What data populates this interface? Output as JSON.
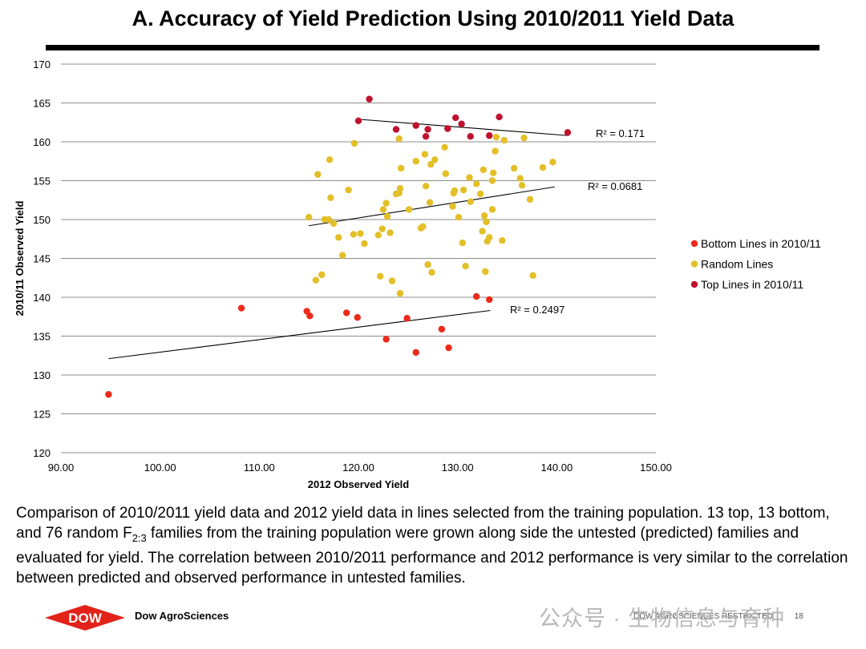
{
  "slide_title": "A.  Accuracy of Yield Prediction Using 2010/2011 Yield Data",
  "caption": {
    "part1": "Comparison of 2010/2011 yield data and 2012 yield data in lines selected from the training population.  13 top, 13 bottom, and 76 random F",
    "subscript": "2:3",
    "part2": " families from the training population were grown along side the untested (predicted) families and evaluated for yield.  The correlation between 2010/2011 performance and 2012 performance is very similar to the correlation between predicted and observed performance in untested families."
  },
  "footer": {
    "company": "Dow AgroSciences",
    "logo_text": "DOW",
    "restricted": "DOW AGROSCIENCES RESTRICTED",
    "page_number": "18",
    "watermark": "公众号 · 生物信息与育种"
  },
  "colors": {
    "bottom": "#ee2a1a",
    "random": "#e3bf28",
    "top": "#c0112e",
    "grid": "#8c8c8c",
    "trend": "#000000",
    "logo": "#e2231a"
  },
  "chart_data": {
    "type": "scatter",
    "title": "",
    "xlabel": "2012 Observed Yield",
    "ylabel": "2010/11 Observed Yield",
    "xlim": [
      90,
      150
    ],
    "ylim": [
      120,
      170
    ],
    "x_ticks": [
      "90.00",
      "100.00",
      "110.00",
      "120.00",
      "130.00",
      "140.00",
      "150.00"
    ],
    "y_ticks": [
      "120",
      "125",
      "130",
      "135",
      "140",
      "145",
      "150",
      "155",
      "160",
      "165",
      "170"
    ],
    "grid": "horizontal",
    "legend_position": "right",
    "series": [
      {
        "name": "Bottom Lines in 2010/11",
        "color_key": "bottom",
        "points": [
          [
            94.8,
            127.5
          ],
          [
            108.2,
            138.6
          ],
          [
            114.8,
            138.2
          ],
          [
            115.1,
            137.6
          ],
          [
            118.8,
            138.0
          ],
          [
            119.9,
            137.4
          ],
          [
            122.8,
            134.6
          ],
          [
            124.9,
            137.3
          ],
          [
            125.8,
            132.9
          ],
          [
            128.4,
            135.9
          ],
          [
            129.1,
            133.5
          ],
          [
            131.9,
            140.1
          ],
          [
            133.2,
            139.7
          ]
        ],
        "trendline": {
          "from": [
            94.8,
            132.1
          ],
          "to": [
            133.3,
            138.3
          ]
        },
        "r2_label": "R² = 0.2497"
      },
      {
        "name": "Random Lines",
        "color_key": "random",
        "points": [
          [
            115.0,
            150.3
          ],
          [
            115.7,
            142.2
          ],
          [
            115.9,
            155.8
          ],
          [
            116.3,
            142.9
          ],
          [
            116.6,
            150.0
          ],
          [
            117.0,
            150.0
          ],
          [
            117.1,
            157.7
          ],
          [
            117.2,
            152.8
          ],
          [
            117.5,
            149.5
          ],
          [
            118.0,
            147.7
          ],
          [
            118.4,
            145.4
          ],
          [
            119.0,
            153.8
          ],
          [
            119.5,
            148.1
          ],
          [
            119.6,
            159.8
          ],
          [
            120.6,
            146.9
          ],
          [
            122.0,
            148.0
          ],
          [
            122.2,
            142.7
          ],
          [
            122.4,
            148.8
          ],
          [
            122.5,
            151.3
          ],
          [
            122.8,
            152.1
          ],
          [
            122.9,
            150.4
          ],
          [
            123.2,
            148.3
          ],
          [
            123.4,
            142.1
          ],
          [
            123.8,
            153.3
          ],
          [
            124.1,
            160.4
          ],
          [
            124.1,
            153.4
          ],
          [
            124.2,
            140.5
          ],
          [
            124.2,
            154.0
          ],
          [
            124.3,
            156.6
          ],
          [
            125.1,
            151.3
          ],
          [
            125.8,
            157.5
          ],
          [
            126.3,
            148.9
          ],
          [
            126.5,
            149.1
          ],
          [
            126.7,
            158.4
          ],
          [
            126.8,
            154.3
          ],
          [
            127.0,
            144.2
          ],
          [
            127.2,
            152.2
          ],
          [
            127.3,
            157.1
          ],
          [
            127.4,
            143.2
          ],
          [
            127.7,
            157.7
          ],
          [
            128.7,
            159.3
          ],
          [
            128.8,
            155.9
          ],
          [
            129.5,
            151.7
          ],
          [
            129.6,
            153.4
          ],
          [
            129.7,
            153.7
          ],
          [
            130.1,
            150.3
          ],
          [
            130.5,
            147.0
          ],
          [
            130.6,
            153.8
          ],
          [
            130.8,
            144.0
          ],
          [
            131.2,
            155.4
          ],
          [
            131.3,
            152.3
          ],
          [
            131.9,
            154.6
          ],
          [
            132.3,
            153.3
          ],
          [
            132.5,
            148.5
          ],
          [
            132.6,
            156.4
          ],
          [
            132.7,
            150.5
          ],
          [
            132.8,
            143.3
          ],
          [
            132.9,
            149.7
          ],
          [
            133.0,
            147.2
          ],
          [
            133.2,
            147.7
          ],
          [
            133.5,
            151.3
          ],
          [
            133.5,
            155.0
          ],
          [
            133.6,
            156.0
          ],
          [
            133.8,
            158.8
          ],
          [
            133.9,
            160.6
          ],
          [
            134.5,
            147.3
          ],
          [
            134.7,
            160.2
          ],
          [
            135.7,
            156.6
          ],
          [
            136.3,
            155.3
          ],
          [
            136.5,
            154.4
          ],
          [
            136.7,
            160.5
          ],
          [
            137.3,
            152.6
          ],
          [
            137.6,
            142.8
          ],
          [
            138.6,
            156.7
          ],
          [
            139.6,
            157.4
          ],
          [
            120.2,
            148.2
          ]
        ],
        "trendline": {
          "from": [
            115.0,
            149.2
          ],
          "to": [
            139.8,
            154.2
          ]
        },
        "r2_label": "R² = 0.0681"
      },
      {
        "name": "Top Lines in 2010/11",
        "color_key": "top",
        "points": [
          [
            120.0,
            162.7
          ],
          [
            121.1,
            165.5
          ],
          [
            123.8,
            161.6
          ],
          [
            125.8,
            162.1
          ],
          [
            126.8,
            160.7
          ],
          [
            127.0,
            161.6
          ],
          [
            129.0,
            161.7
          ],
          [
            129.8,
            163.1
          ],
          [
            130.4,
            162.3
          ],
          [
            131.3,
            160.7
          ],
          [
            133.2,
            160.8
          ],
          [
            134.2,
            163.2
          ],
          [
            141.1,
            161.2
          ]
        ],
        "trendline": {
          "from": [
            120.0,
            162.9
          ],
          "to": [
            141.2,
            160.8
          ]
        },
        "r2_label": "R² = 0.171"
      }
    ]
  }
}
